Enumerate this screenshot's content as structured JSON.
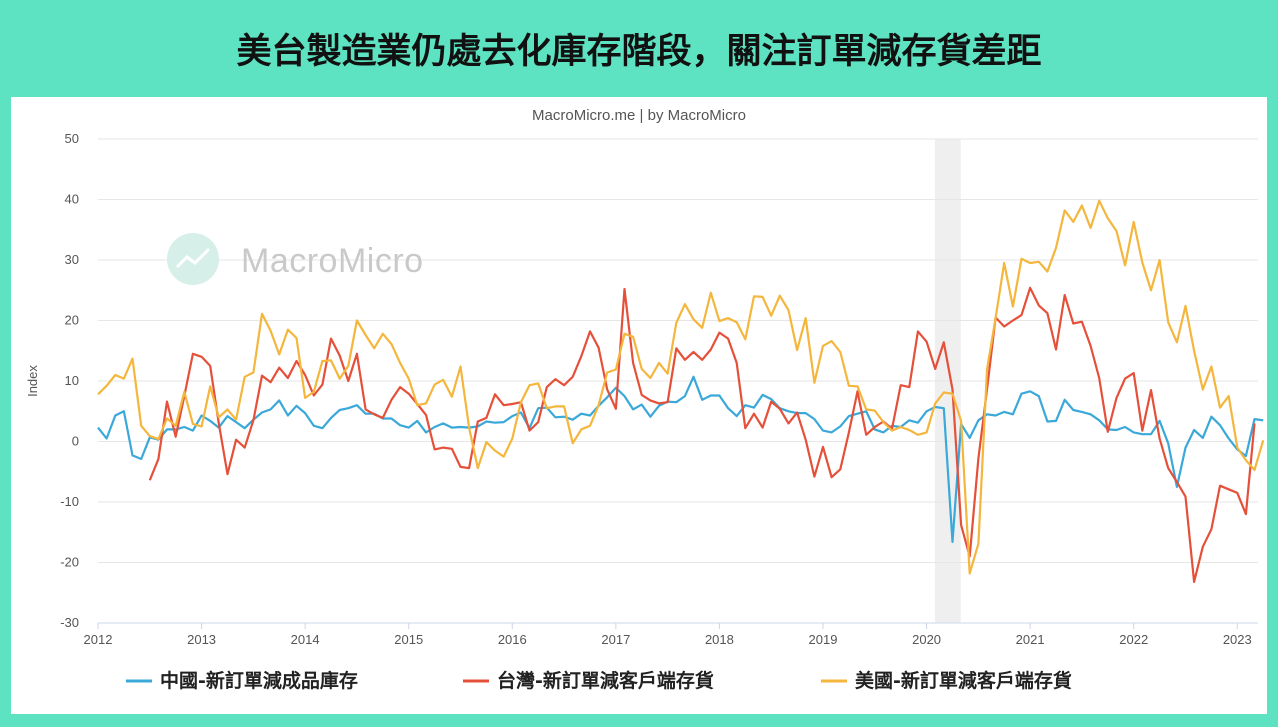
{
  "headline": "美台製造業仍處去化庫存階段，關注訂單減存貨差距",
  "chart_data": {
    "type": "line",
    "subtitle": "MacroMicro.me | by MacroMicro",
    "watermark": "MacroMicro",
    "ylabel": "Index",
    "ylim": [
      -30,
      50
    ],
    "yticks": [
      -30,
      -20,
      -10,
      0,
      10,
      20,
      30,
      40,
      50
    ],
    "xlim": [
      2012.0,
      2023.2
    ],
    "xticks": [
      2012,
      2013,
      2014,
      2015,
      2016,
      2017,
      2018,
      2019,
      2020,
      2021,
      2022,
      2023
    ],
    "grid": true,
    "legend_position": "bottom",
    "shaded_period": [
      2020.08,
      2020.33
    ],
    "series": [
      {
        "name": "中國-新訂單減成品庫存",
        "color": "#3aa8d8",
        "start": 2012.0,
        "values": [
          2.3,
          0.5,
          4.3,
          5.0,
          -2.3,
          -2.9,
          0.7,
          0.3,
          2.0,
          2.0,
          2.4,
          1.8,
          4.3,
          3.4,
          2.3,
          4.2,
          3.2,
          2.2,
          3.6,
          4.8,
          5.3,
          6.8,
          4.3,
          5.9,
          4.7,
          2.6,
          2.2,
          3.9,
          5.2,
          5.5,
          6.0,
          4.6,
          4.6,
          3.8,
          3.8,
          2.7,
          2.3,
          3.4,
          1.5,
          2.4,
          3.0,
          2.3,
          2.4,
          2.3,
          2.5,
          3.3,
          3.1,
          3.2,
          4.2,
          4.8,
          2.2,
          5.5,
          5.6,
          4.0,
          4.1,
          3.6,
          4.6,
          4.3,
          5.9,
          7.3,
          8.9,
          7.5,
          5.3,
          6.1,
          4.1,
          5.9,
          6.6,
          6.5,
          7.5,
          10.7,
          6.9,
          7.6,
          7.6,
          5.5,
          4.2,
          6.0,
          5.6,
          7.7,
          7.0,
          5.5,
          5.0,
          4.7,
          4.7,
          3.7,
          1.8,
          1.5,
          2.5,
          4.2,
          4.6,
          5.0,
          2.0,
          1.5,
          2.6,
          2.4,
          3.5,
          3.1,
          5.0,
          5.7,
          5.5,
          -16.6,
          2.9,
          0.6,
          3.5,
          4.5,
          4.3,
          4.9,
          4.5,
          7.9,
          8.3,
          7.5,
          3.3,
          3.4,
          6.9,
          5.2,
          4.9,
          4.5,
          3.5,
          2.0,
          1.9,
          2.4,
          1.5,
          1.2,
          1.2,
          3.4,
          -0.3,
          -7.5,
          -1.0,
          1.9,
          0.6,
          4.1,
          2.7,
          0.5,
          -1.3,
          -2.4,
          3.7,
          3.5
        ]
      },
      {
        "name": "台灣-新訂單減客戶端存貨",
        "color": "#e5503a",
        "start": 2012.5,
        "values": [
          -6.4,
          -2.9,
          6.6,
          0.8,
          7.5,
          14.5,
          14.0,
          12.5,
          3.0,
          -5.4,
          0.3,
          -1.0,
          3.5,
          10.9,
          9.8,
          12.2,
          10.5,
          13.3,
          11.0,
          7.6,
          9.4,
          17.0,
          14.2,
          10.0,
          14.5,
          5.3,
          4.5,
          3.9,
          6.9,
          9.0,
          7.9,
          6.2,
          4.4,
          -1.3,
          -1.0,
          -1.2,
          -4.2,
          -4.4,
          3.3,
          3.9,
          7.8,
          6.0,
          6.2,
          6.5,
          1.8,
          3.2,
          9.0,
          10.3,
          9.3,
          10.7,
          14.1,
          18.2,
          15.5,
          8.6,
          5.4,
          25.2,
          13.0,
          7.7,
          6.8,
          6.3,
          6.5,
          15.4,
          13.5,
          14.8,
          13.5,
          15.2,
          18.0,
          17.0,
          13.0,
          2.2,
          4.6,
          2.3,
          6.6,
          5.4,
          3.0,
          4.8,
          0.3,
          -5.8,
          -0.9,
          -5.9,
          -4.6,
          1.5,
          8.3,
          1.1,
          2.4,
          3.3,
          2.1,
          9.3,
          9.0,
          18.2,
          16.5,
          12.0,
          16.4,
          8.6,
          -13.8,
          -19.0,
          -2.8,
          8.6,
          20.5,
          19.0,
          20.0,
          20.9,
          25.4,
          22.5,
          21.2,
          15.2,
          24.2,
          19.5,
          19.8,
          15.8,
          10.5,
          1.6,
          7.2,
          10.4,
          11.3,
          1.8,
          8.5,
          0.5,
          -4.4,
          -6.7,
          -9.1,
          -23.2,
          -17.4,
          -14.5,
          -7.3,
          -7.9,
          -8.5,
          -12.0,
          3.0
        ]
      },
      {
        "name": "美國-新訂單減客戶端存貨",
        "color": "#f4b63c",
        "start": 2012.0,
        "values": [
          7.8,
          9.2,
          11.0,
          10.4,
          13.7,
          2.6,
          0.9,
          0.4,
          3.8,
          2.6,
          8.2,
          2.9,
          2.5,
          9.1,
          4.0,
          5.3,
          3.6,
          10.7,
          11.4,
          21.1,
          18.3,
          14.4,
          18.5,
          17.1,
          7.2,
          8.2,
          13.3,
          13.4,
          10.4,
          12.5,
          20.0,
          17.6,
          15.4,
          17.8,
          16.1,
          13.0,
          10.4,
          6.0,
          6.3,
          9.4,
          10.2,
          7.4,
          12.4,
          2.3,
          -4.4,
          -0.1,
          -1.5,
          -2.5,
          0.5,
          6.5,
          9.3,
          9.6,
          5.5,
          5.8,
          5.8,
          -0.3,
          2.0,
          2.6,
          6.0,
          11.4,
          11.9,
          17.8,
          17.3,
          12.0,
          10.5,
          13.0,
          11.2,
          19.6,
          22.7,
          20.2,
          18.8,
          24.6,
          19.9,
          20.4,
          19.7,
          16.9,
          24.0,
          23.9,
          20.8,
          24.1,
          21.7,
          15.1,
          20.4,
          9.7,
          15.8,
          16.6,
          14.8,
          9.2,
          9.1,
          5.3,
          5.1,
          3.2,
          1.8,
          2.4,
          1.9,
          1.1,
          1.5,
          6.3,
          8.1,
          7.9,
          3.4,
          -21.8,
          -16.9,
          11.9,
          20.4,
          29.5,
          22.3,
          30.2,
          29.5,
          29.7,
          28.1,
          32.0,
          38.2,
          36.3,
          39.0,
          35.3,
          39.8,
          36.9,
          34.8,
          29.1,
          36.3,
          29.6,
          25.0,
          30.0,
          19.7,
          16.4,
          22.4,
          15.0,
          8.6,
          12.4,
          5.6,
          7.5,
          -1.0,
          -3.1,
          -4.7,
          0.2
        ]
      }
    ]
  }
}
